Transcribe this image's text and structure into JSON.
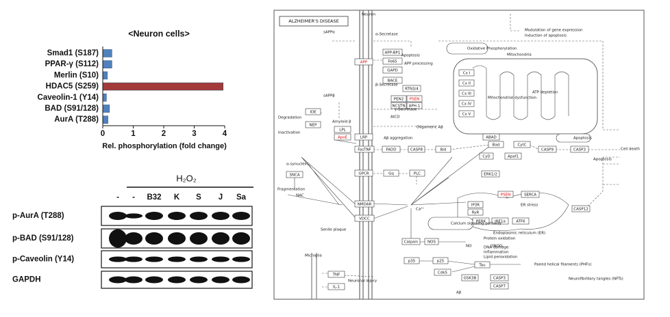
{
  "chart_data": {
    "type": "hbar",
    "title": "<Neuron cells>",
    "categories": [
      "Smad1 (S187)",
      "PPAR-γ (S112)",
      "Merlin (S10)",
      "HDAC5 (S259)",
      "Caveolin-1 (Y14)",
      "BAD (S91/128)",
      "AurA (T288)"
    ],
    "values": [
      0.3,
      0.3,
      0.15,
      3.95,
      0.12,
      0.22,
      0.17
    ],
    "colors": [
      "#4f81bd",
      "#4f81bd",
      "#4f81bd",
      "#a33a3a",
      "#4f81bd",
      "#4f81bd",
      "#4f81bd"
    ],
    "xlabel": "Rel. phosphorylation (fold change)",
    "xlim": [
      0,
      4
    ],
    "xticks": [
      0,
      1,
      2,
      3,
      4
    ]
  },
  "blot": {
    "treatment": "H₂O₂",
    "lanes": [
      "-",
      "-",
      "B32",
      "K",
      "S",
      "J",
      "Sa"
    ],
    "rows": [
      "p-AurA (T288)",
      "p-BAD (S91/128)",
      "p-Caveolin (Y14)",
      "GAPDH"
    ]
  },
  "pathway": {
    "title": "ALZHEIMER'S DISEASE",
    "nodes": [
      {
        "label": "APP",
        "color": "#e00000"
      },
      {
        "label": "APP-BP1"
      },
      {
        "label": "Fe65"
      },
      {
        "label": "GAPD"
      },
      {
        "label": "BACE"
      },
      {
        "label": "RTN3/4"
      },
      {
        "label": "PEN2"
      },
      {
        "label": "PSEN",
        "color": "#e00000"
      },
      {
        "label": "NCSTN"
      },
      {
        "label": "APH-1"
      },
      {
        "label": "IDE"
      },
      {
        "label": "NEP"
      },
      {
        "label": "LPL"
      },
      {
        "label": "ApoE",
        "color": "#e00000"
      },
      {
        "label": "LRP"
      },
      {
        "label": "FasTNF"
      },
      {
        "label": "FADD"
      },
      {
        "label": "CASP8"
      },
      {
        "label": "Bid"
      },
      {
        "label": "GPCR"
      },
      {
        "label": "Gq"
      },
      {
        "label": "PLC"
      },
      {
        "label": "SNCA"
      },
      {
        "label": "NMDAR"
      },
      {
        "label": "VDCC"
      },
      {
        "label": "Calpain"
      },
      {
        "label": "NOS"
      },
      {
        "label": "p35"
      },
      {
        "label": "p25"
      },
      {
        "label": "Cdk5"
      },
      {
        "label": "Tau",
        "fill": "#00e0e0"
      },
      {
        "label": "GSK3B"
      },
      {
        "label": "CASP3"
      },
      {
        "label": "CASP7"
      },
      {
        "label": "TNF"
      },
      {
        "label": "IL-1"
      },
      {
        "label": "Cx I"
      },
      {
        "label": "Cx II"
      },
      {
        "label": "Cx III"
      },
      {
        "label": "Cx IV"
      },
      {
        "label": "Cx V"
      },
      {
        "label": "ABAD"
      },
      {
        "label": "Bad",
        "fill": "#00e0e0"
      },
      {
        "label": "CytC"
      },
      {
        "label": "Apaf1"
      },
      {
        "label": "CASP9"
      },
      {
        "label": "CASP3"
      },
      {
        "label": "CyD"
      },
      {
        "label": "ERK1/2"
      },
      {
        "label": "IP3R"
      },
      {
        "label": "RyR"
      },
      {
        "label": "PSEN",
        "color": "#e00000"
      },
      {
        "label": "SERCA"
      },
      {
        "label": "PERK"
      },
      {
        "label": "IRE1a"
      },
      {
        "label": "ATF6"
      },
      {
        "label": "CASP12"
      }
    ],
    "labels": [
      "Neuron",
      "Mitochondria",
      "Oxidative Phosphorylation",
      "Apoptosis",
      "Calcium signaling pathway",
      "Cell death",
      "Degradation",
      "Inactivation",
      "Fragmentation",
      "Senile plaque",
      "Microglia",
      "Neuronal injury",
      "Neurofibrillary tangles (NFTs)",
      "Paired helical filaments (PHFs)",
      "ER stress",
      "Endoplasmic reticulum (ER)",
      "Mitochondrial dysfunction",
      "ATP depletion",
      "Modulation of gene expression",
      "Induction of apoptosis",
      "Apoptosis",
      "Aβ aggregation",
      "Oligomeric Aβ",
      "Amyloid β",
      "sAPPα",
      "sAPPβ",
      "AICD",
      "α-synuclein",
      "Ca²⁺",
      "NO",
      "ONOO-",
      "NAC",
      "Aβ",
      "Protein oxidation",
      "DNA damage",
      "Inflammation",
      "Lipid peroxidation",
      "α-Secretase",
      "β-Secretase",
      "γ-Secretase",
      "Apoptosis",
      "APP processing"
    ]
  }
}
